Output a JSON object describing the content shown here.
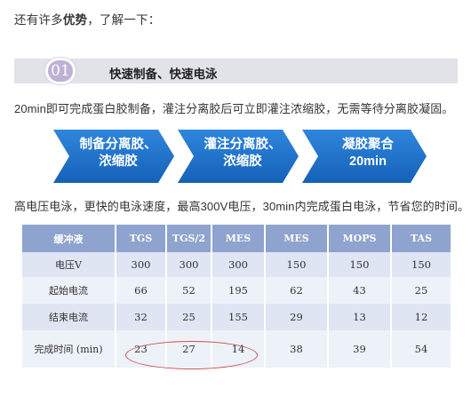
{
  "intro": {
    "prefix": "还有许多",
    "bold": "优势",
    "suffix": "，了解一下："
  },
  "section": {
    "number": "01",
    "title": "快速制备、快速电泳"
  },
  "para1": "20min即可完成蛋白胶制备，灌注分离胶后可立即灌注浓缩胶，无需等待分离胶凝固。",
  "flow": {
    "color": "#1d6ec9",
    "steps": [
      {
        "line1": "制备分离胶、",
        "line2": "浓缩胶"
      },
      {
        "line1": "灌注分离胶、",
        "line2": "浓缩胶"
      },
      {
        "line1": "凝胶聚合",
        "line2": "20min"
      }
    ]
  },
  "para2": "高电压电泳，更快的电泳速度，最高300V电压，30min内完成蛋白电泳，节省您的时间。",
  "table": {
    "header_color": "#8ea3ce",
    "headers": [
      "缓冲液",
      "TGS",
      "TGS/2",
      "MES",
      "MES",
      "MOPS",
      "TAS"
    ],
    "rows": [
      [
        "电压V",
        "300",
        "300",
        "300",
        "150",
        "150",
        "150"
      ],
      [
        "起始电流",
        "66",
        "52",
        "195",
        "62",
        "43",
        "25"
      ],
      [
        "结束电流",
        "32",
        "25",
        "155",
        "29",
        "13",
        "12"
      ],
      [
        "完成时间 (min)",
        "23",
        "27",
        "14",
        "38",
        "39",
        "54"
      ]
    ]
  },
  "highlight_color": "#c9524e"
}
